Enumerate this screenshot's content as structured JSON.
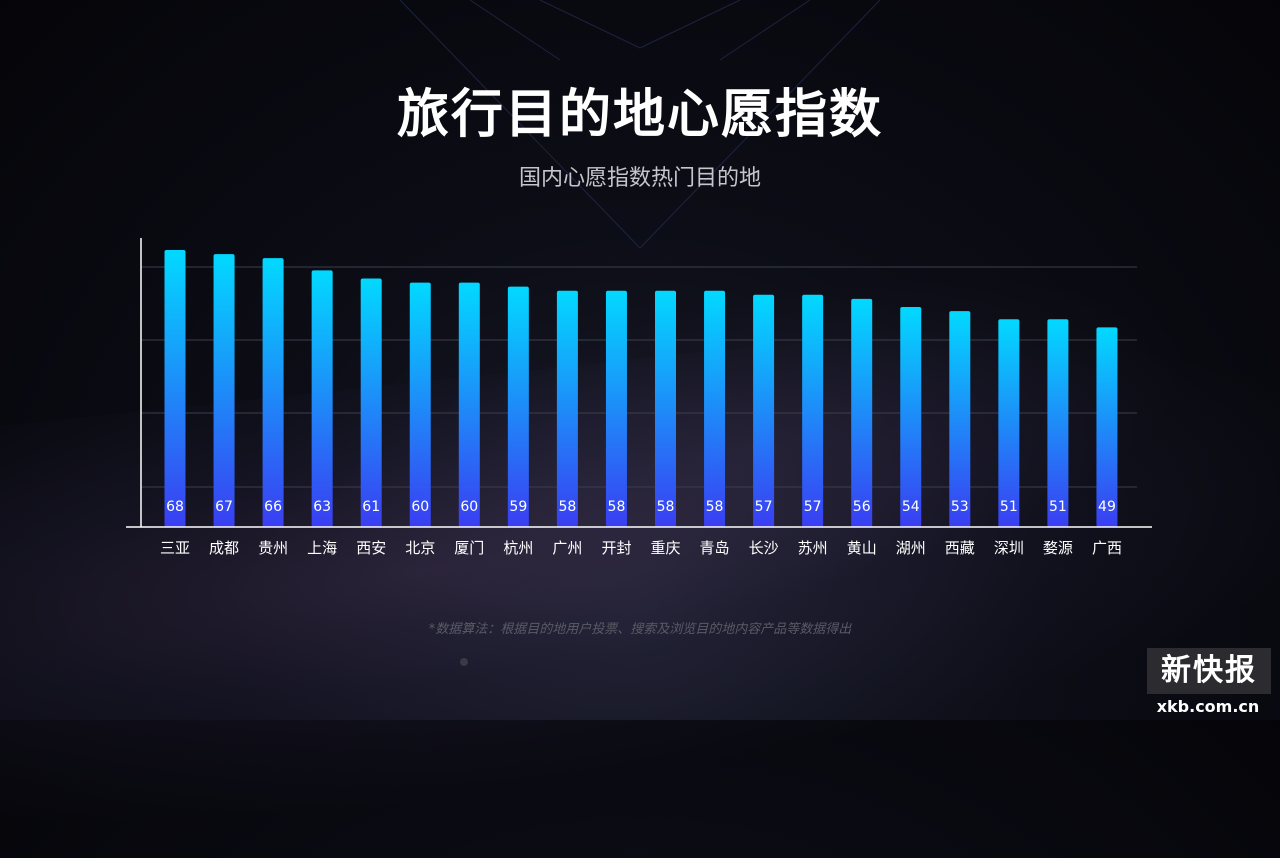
{
  "page": {
    "title": "旅行目的地心愿指数",
    "subtitle": "国内心愿指数热门目的地",
    "footnote": "*数据算法：根据目的地用户投票、搜索及浏览目的地内容产品等数据得出"
  },
  "branding": {
    "logo_text": "新快报",
    "logo_url": "xkb.com.cn"
  },
  "colors": {
    "bar_top": "#02d9ff",
    "bar_bottom": "#3a3ef2",
    "axis": "#ffffff",
    "grid": "#3c3e4c",
    "value_label": "#ffffff",
    "category_label": "#ffffff"
  },
  "chart_data": {
    "type": "bar",
    "title": "旅行目的地心愿指数",
    "subtitle": "国内心愿指数热门目的地",
    "categories": [
      "三亚",
      "成都",
      "贵州",
      "上海",
      "西安",
      "北京",
      "厦门",
      "杭州",
      "广州",
      "开封",
      "重庆",
      "青岛",
      "长沙",
      "苏州",
      "黄山",
      "湖州",
      "西藏",
      "深圳",
      "婺源",
      "广西"
    ],
    "values": [
      68,
      67,
      66,
      63,
      61,
      60,
      60,
      59,
      58,
      58,
      58,
      58,
      57,
      57,
      56,
      54,
      53,
      51,
      51,
      49
    ],
    "ylim": [
      0,
      72
    ],
    "grid": true,
    "data_labels": true,
    "xlabel": "",
    "ylabel": ""
  }
}
